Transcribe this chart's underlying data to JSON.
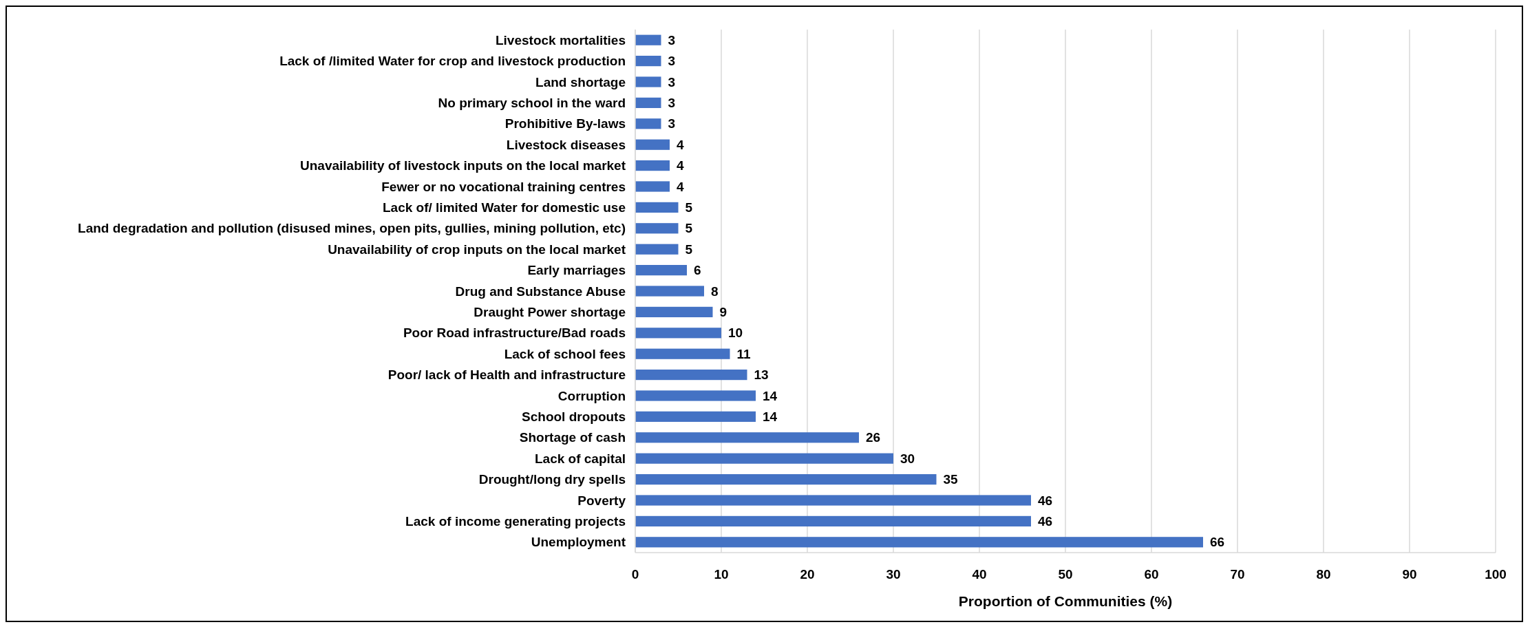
{
  "chart_data": {
    "type": "bar",
    "orientation": "horizontal",
    "xlabel": "Proportion of Communities (%)",
    "categories": [
      "Livestock mortalities",
      "Lack of /limited Water for crop and livestock production",
      "Land shortage",
      "No primary school in the ward",
      "Prohibitive By-laws",
      "Livestock diseases",
      "Unavailability of livestock inputs on the local market",
      "Fewer or no vocational training centres",
      "Lack of/ limited Water for domestic use",
      "Land degradation and pollution (disused mines, open pits, gullies, mining pollution, etc)",
      "Unavailability of crop inputs on the local market",
      "Early marriages",
      "Drug and Substance Abuse",
      "Draught Power shortage",
      "Poor Road infrastructure/Bad roads",
      "Lack of school fees",
      "Poor/ lack of Health and infrastructure",
      "Corruption",
      "School dropouts",
      "Shortage of cash",
      "Lack of capital",
      "Drought/long dry spells",
      "Poverty",
      "Lack of income generating projects",
      "Unemployment"
    ],
    "values": [
      3,
      3,
      3,
      3,
      3,
      4,
      4,
      4,
      5,
      5,
      5,
      6,
      8,
      9,
      10,
      11,
      13,
      14,
      14,
      26,
      30,
      35,
      46,
      46,
      66
    ],
    "color": "#4472c4",
    "data_labels": true,
    "xlim": [
      0,
      100
    ],
    "xticks": [
      0,
      10,
      20,
      30,
      40,
      50,
      60,
      70,
      80,
      90,
      100
    ],
    "grid": "x"
  }
}
